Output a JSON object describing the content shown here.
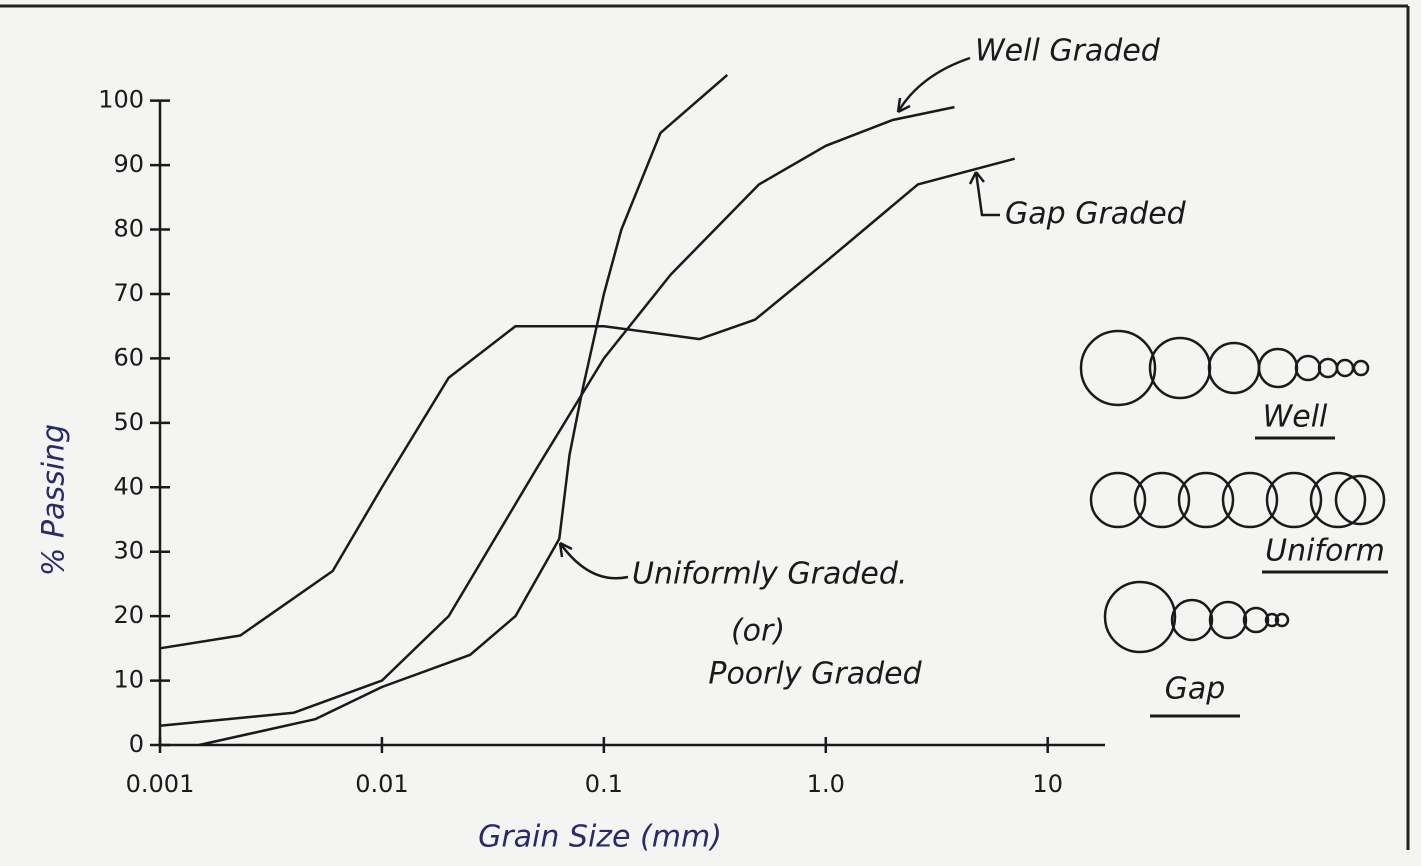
{
  "chart_data": {
    "type": "line",
    "x_label": "Grain Size (mm)",
    "y_label": "% Passing",
    "xscale": "log",
    "xlim": [
      0.001,
      16
    ],
    "xticks": [
      0.001,
      0.01,
      0.1,
      {
        "value": 1,
        "label": "1.0"
      },
      10
    ],
    "ylim": [
      0,
      106
    ],
    "yticks": [
      0,
      10,
      20,
      30,
      40,
      50,
      60,
      70,
      80,
      90,
      100
    ],
    "series": [
      {
        "name": "Well Graded",
        "color": "#1a1a1a",
        "x": [
          0.001,
          0.004,
          0.01,
          0.02,
          0.05,
          0.1,
          0.2,
          0.5,
          1,
          2,
          3.8
        ],
        "values": [
          3,
          5,
          10,
          20,
          43,
          60,
          73,
          87,
          93,
          97,
          99
        ]
      },
      {
        "name": "Gap Graded",
        "color": "#1a1a1a",
        "x": [
          0.001,
          0.0023,
          0.006,
          0.01,
          0.02,
          0.04,
          0.1,
          0.27,
          0.48,
          1,
          2.6,
          7.1
        ],
        "values": [
          15,
          17,
          27,
          40,
          57,
          65,
          65,
          63,
          66,
          75,
          87,
          91
        ]
      },
      {
        "name": "Uniformly Graded.",
        "color": "#1a1a1a",
        "x": [
          0.0015,
          0.005,
          0.01,
          0.025,
          0.04,
          0.063,
          0.07,
          0.08,
          0.1,
          0.12,
          0.18,
          0.36
        ],
        "values": [
          0,
          4,
          9,
          14,
          20,
          32,
          45,
          55,
          70,
          80,
          95,
          104
        ]
      }
    ],
    "annotations": [
      "(or)",
      "Poorly Graded"
    ],
    "diagram_labels": [
      "Well",
      "Uniform",
      "Gap"
    ]
  }
}
